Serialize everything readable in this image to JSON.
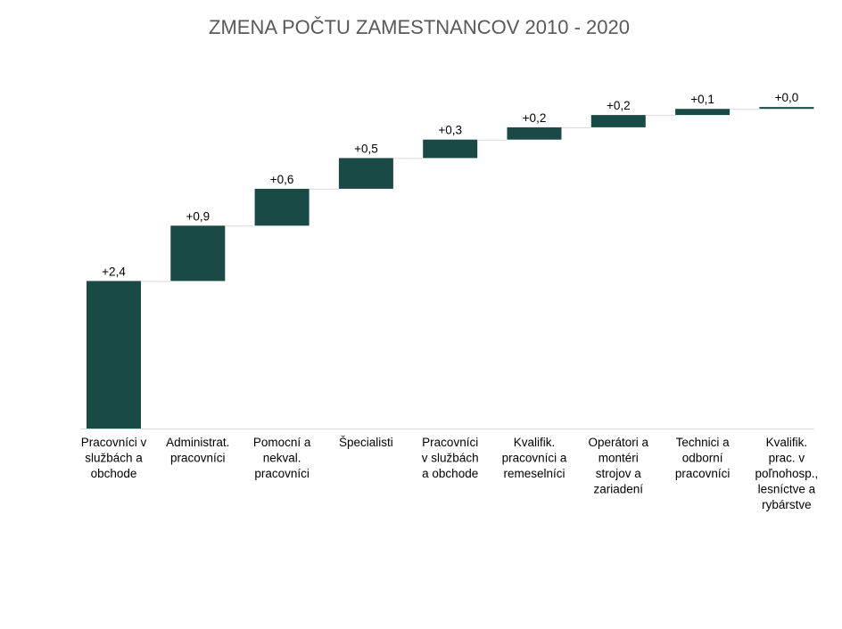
{
  "chart_data": {
    "type": "waterfall",
    "title": "ZMENA POČTU ZAMESTNANCOV 2010 - 2020",
    "xlabel": "",
    "ylabel": "",
    "categories": [
      [
        "Pracovníci v",
        "službách a",
        "obchode"
      ],
      [
        "Administrat.",
        "pracovníci"
      ],
      [
        "Pomocní a",
        "nekval.",
        "pracovníci"
      ],
      [
        "Špecialisti"
      ],
      [
        "Pracovníci",
        "v službách",
        "a obchode"
      ],
      [
        "Kvalifik.",
        "pracovníci a",
        "remeselníci"
      ],
      [
        "Operátori a",
        "montéri",
        "strojov a",
        "zariadení"
      ],
      [
        "Technici a",
        "odborní",
        "pracovníci"
      ],
      [
        "Kvalifik.",
        "prac. v",
        "poľnohosp.,",
        "lesníctve a",
        "rybárstve"
      ]
    ],
    "values": [
      2.4,
      0.9,
      0.6,
      0.5,
      0.3,
      0.2,
      0.2,
      0.1,
      0.03
    ],
    "data_labels": [
      "+2,4",
      "+0,9",
      "+0,6",
      "+0,5",
      "+0,3",
      "+0,2",
      "+0,2",
      "+0,1",
      "+0,0"
    ],
    "ylim": [
      0,
      5.3
    ],
    "grid": false,
    "legend": "none",
    "bar_color": "#1a4a45",
    "connector_color": "#d9d9d9"
  }
}
